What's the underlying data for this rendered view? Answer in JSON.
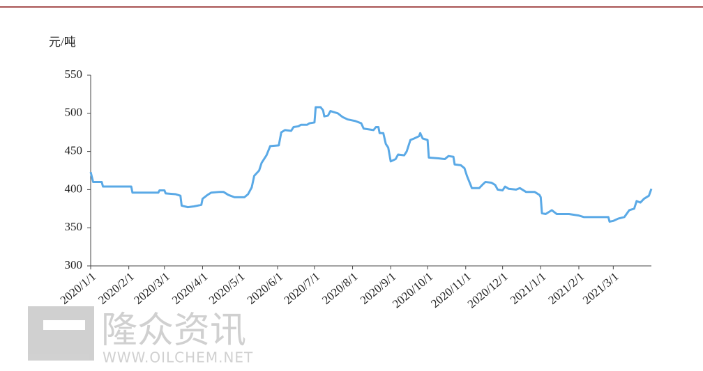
{
  "chart_data": {
    "type": "line",
    "y_axis_label": "元/吨",
    "watermark": {
      "brand": "隆众资讯",
      "url": "WWW.OILCHEM.NET"
    },
    "ylim": [
      300,
      550
    ],
    "yticks": [
      300,
      350,
      400,
      450,
      500,
      550
    ],
    "xlim": [
      "2020/1/1",
      "2021/4/1"
    ],
    "xticks": [
      "2020/1/1",
      "2020/2/1",
      "2020/3/1",
      "2020/4/1",
      "2020/5/1",
      "2020/6/1",
      "2020/7/1",
      "2020/8/1",
      "2020/9/1",
      "2020/10/1",
      "2020/11/1",
      "2020/12/1",
      "2021/1/1",
      "2021/2/1",
      "2021/3/1"
    ],
    "x": [
      "2020/1/1",
      "2020/1/3",
      "2020/1/10",
      "2020/1/11",
      "2020/2/3",
      "2020/2/4",
      "2020/2/25",
      "2020/2/26",
      "2020/3/1",
      "2020/3/2",
      "2020/3/10",
      "2020/3/14",
      "2020/3/15",
      "2020/3/20",
      "2020/3/25",
      "2020/3/31",
      "2020/4/1",
      "2020/4/5",
      "2020/4/8",
      "2020/4/15",
      "2020/4/18",
      "2020/4/22",
      "2020/4/27",
      "2020/5/5",
      "2020/5/8",
      "2020/5/11",
      "2020/5/13",
      "2020/5/17",
      "2020/5/19",
      "2020/5/21",
      "2020/5/23",
      "2020/5/26",
      "2020/6/2",
      "2020/6/4",
      "2020/6/7",
      "2020/6/12",
      "2020/6/14",
      "2020/6/18",
      "2020/6/20",
      "2020/6/25",
      "2020/6/27",
      "2020/7/1",
      "2020/7/2",
      "2020/7/6",
      "2020/7/8",
      "2020/7/9",
      "2020/7/12",
      "2020/7/14",
      "2020/7/20",
      "2020/7/24",
      "2020/7/28",
      "2020/8/3",
      "2020/8/8",
      "2020/8/10",
      "2020/8/18",
      "2020/8/20",
      "2020/8/22",
      "2020/8/23",
      "2020/8/26",
      "2020/8/28",
      "2020/8/30",
      "2020/9/1",
      "2020/9/5",
      "2020/9/7",
      "2020/9/12",
      "2020/9/14",
      "2020/9/17",
      "2020/9/20",
      "2020/9/24",
      "2020/9/25",
      "2020/9/27",
      "2020/10/1",
      "2020/10/2",
      "2020/10/10",
      "2020/10/15",
      "2020/10/18",
      "2020/10/22",
      "2020/10/23",
      "2020/10/28",
      "2020/10/31",
      "2020/11/2",
      "2020/11/4",
      "2020/11/6",
      "2020/11/12",
      "2020/11/15",
      "2020/11/17",
      "2020/11/22",
      "2020/11/25",
      "2020/11/27",
      "2020/12/1",
      "2020/12/3",
      "2020/12/6",
      "2020/12/12",
      "2020/12/15",
      "2020/12/20",
      "2020/12/27",
      "2020/12/31",
      "2021/1/1",
      "2021/1/2",
      "2021/1/5",
      "2021/1/10",
      "2021/1/14",
      "2021/1/24",
      "2021/2/1",
      "2021/2/5",
      "2021/2/25",
      "2021/2/26",
      "2021/3/1",
      "2021/3/5",
      "2021/3/10",
      "2021/3/14",
      "2021/3/18",
      "2021/3/20",
      "2021/3/23",
      "2021/3/26",
      "2021/3/30",
      "2021/4/1"
    ],
    "series": [
      {
        "color": "#5aa9e6",
        "values": [
          423,
          410,
          410,
          404,
          404,
          396,
          396,
          399,
          399,
          395,
          394,
          392,
          379,
          377,
          378,
          380,
          388,
          393,
          396,
          397,
          397,
          393,
          390,
          390,
          394,
          403,
          418,
          425,
          435,
          440,
          445,
          457,
          458,
          475,
          478,
          477,
          482,
          483,
          485,
          485,
          487,
          488,
          508,
          508,
          504,
          496,
          497,
          503,
          500,
          495,
          492,
          490,
          487,
          480,
          478,
          482,
          482,
          474,
          474,
          460,
          455,
          437,
          440,
          446,
          445,
          450,
          465,
          467,
          470,
          474,
          467,
          465,
          442,
          441,
          440,
          444,
          443,
          433,
          432,
          428,
          418,
          410,
          402,
          402,
          407,
          410,
          409,
          406,
          400,
          399,
          404,
          401,
          400,
          402,
          397,
          397,
          393,
          390,
          369,
          368,
          373,
          368,
          368,
          366,
          364,
          364,
          358,
          359,
          362,
          364,
          373,
          375,
          385,
          383,
          388,
          392,
          401
        ]
      }
    ]
  }
}
